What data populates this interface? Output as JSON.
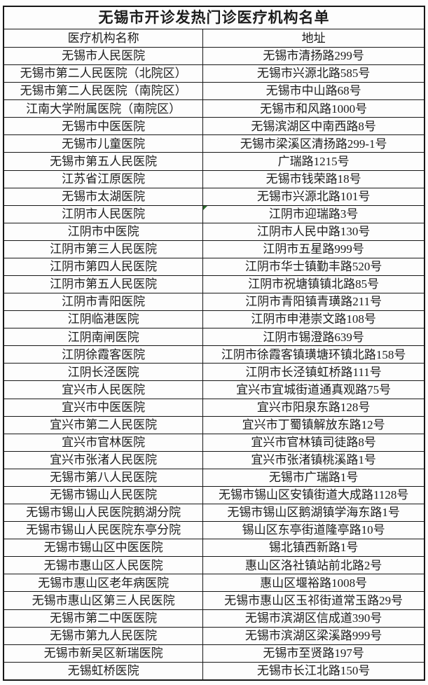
{
  "table": {
    "title": "无锡市开诊发热门诊医疗机构名单",
    "columns": {
      "institution": "医疗机构名称",
      "address": "地址"
    },
    "rows": [
      [
        "无锡市人民医院",
        "无锡市清扬路299号"
      ],
      [
        "无锡市第二人民医院（北院区）",
        "无锡市兴源北路585号"
      ],
      [
        "无锡市第二人民医院（南院区）",
        "无锡市中山路68号"
      ],
      [
        "江南大学附属医院（南院区）",
        "无锡市和风路1000号"
      ],
      [
        "无锡市中医医院",
        "无锡滨湖区中南西路8号"
      ],
      [
        "无锡市儿童医院",
        "无锡市梁溪区清扬路299-1号"
      ],
      [
        "无锡市第五人民医院",
        "广瑞路1215号"
      ],
      [
        "江苏省江原医院",
        "无锡市钱荣路18号"
      ],
      [
        "无锡市太湖医院",
        "无锡市兴源北路101号"
      ],
      [
        "江阴市人民医院",
        "江阴市迎瑞路3号"
      ],
      [
        "江阴市中医院",
        "江阴市人民中路130号"
      ],
      [
        "江阴市第三人民医院",
        "江阴市五星路999号"
      ],
      [
        "江阴市第四人民医院",
        "江阴市华士镇勤丰路520号"
      ],
      [
        "江阴市第五人民医院",
        "江阴市祝塘镇镇北路85号"
      ],
      [
        "江阴市青阳医院",
        "江阴市青阳镇青璜路211号"
      ],
      [
        "江阴临港医院",
        "江阴市申港崇文路108号"
      ],
      [
        "江阴南闸医院",
        "江阴市锡澄路639号"
      ],
      [
        "江阴徐霞客医院",
        "江阴市徐霞客镇璜塘环镇北路158号"
      ],
      [
        "江阴长泾医院",
        "江阴市长泾镇虹桥路111号"
      ],
      [
        "宜兴市人民医院",
        "宜兴市宜城街道通真观路75号"
      ],
      [
        "宜兴市中医医院",
        "宜兴市阳泉东路128号"
      ],
      [
        "宜兴市第二人民医院",
        "宜兴市丁蜀镇解放东路12号"
      ],
      [
        "宜兴市官林医院",
        "宜兴市官林镇司徒路8号"
      ],
      [
        "宜兴市张渚人民医院",
        "宜兴市张渚镇桃溪路1号"
      ],
      [
        "无锡市第八人民医院",
        "无锡市广瑞路1号"
      ],
      [
        "无锡市锡山人民医院",
        "无锡市锡山区安镇街道大成路1128号"
      ],
      [
        "无锡市锡山人民医院鹅湖分院",
        "无锡市锡山区鹅湖镇学海东路1号"
      ],
      [
        "无锡市锡山人民医院东亭分院",
        "锡山区东亭街道隆亭路10号"
      ],
      [
        "无锡市锡山区中医医院",
        "锡北镇西新路1号"
      ],
      [
        "无锡市惠山区人民医院",
        "惠山区洛社镇站前北路2号"
      ],
      [
        "无锡市惠山区老年病医院",
        "惠山区堰裕路1008号"
      ],
      [
        "无锡市惠山区第三人民医院",
        "无锡市惠山区玉祁街道常玉路29号"
      ],
      [
        "无锡市第二中医医院",
        "无锡市滨湖区信成道390号"
      ],
      [
        "无锡市第九人民医院",
        "无锡市滨湖区梁溪路999号"
      ],
      [
        "无锡市新吴区新瑞医院",
        "无锡市至贤路197号"
      ],
      [
        "无锡虹桥医院",
        "无锡市长江北路150号"
      ]
    ],
    "annotations": {
      "comment_marker_row_index": 9,
      "comment_marker_column": "address",
      "comment_marker_color": "#2e6b2e"
    }
  }
}
